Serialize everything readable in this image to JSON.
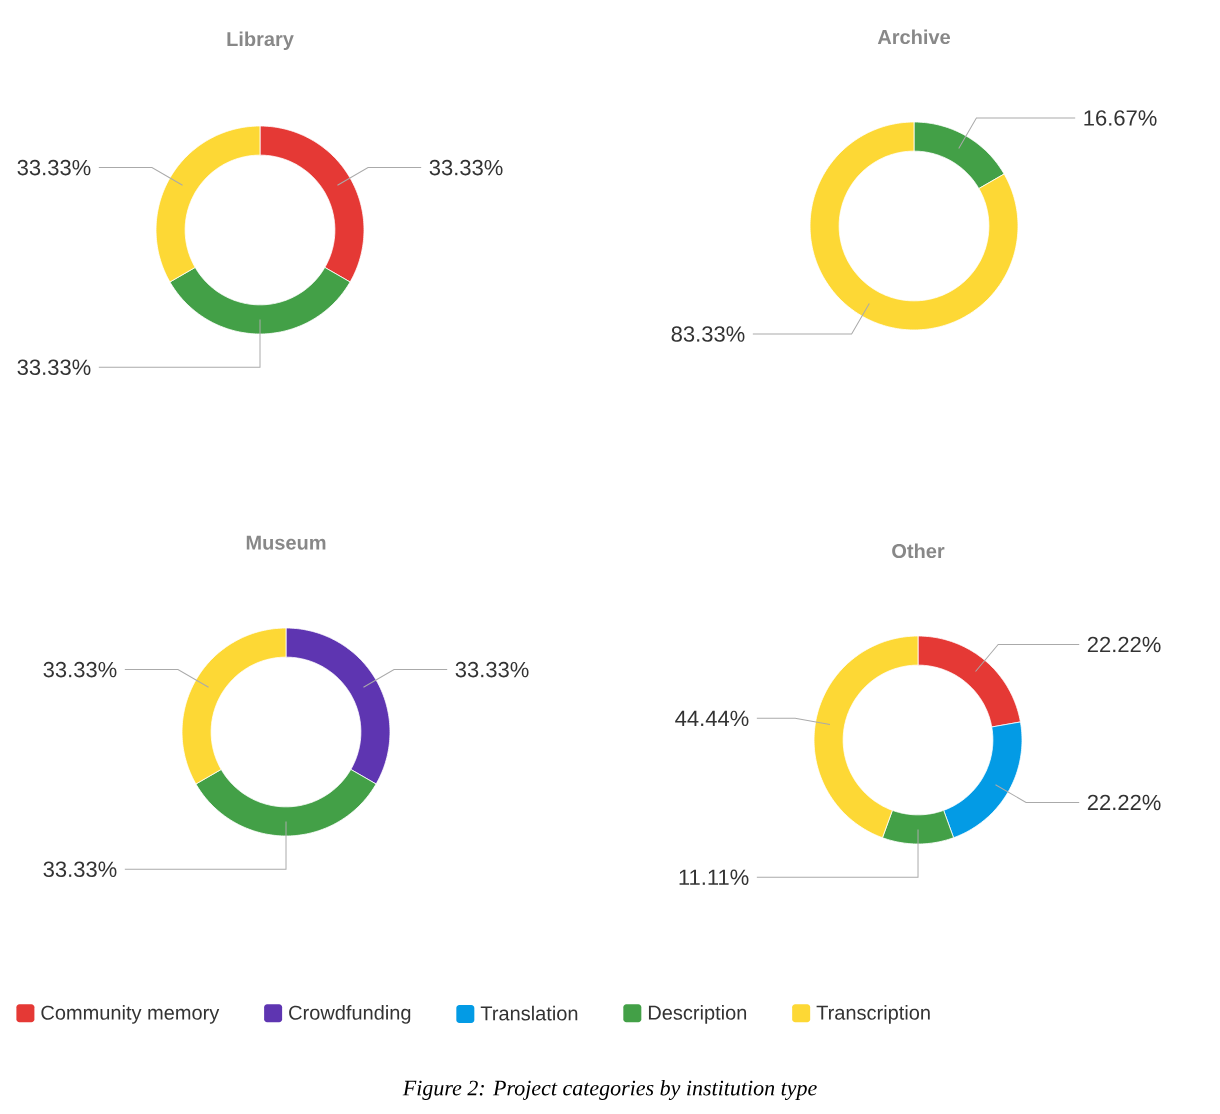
{
  "chart_data": [
    {
      "type": "donut",
      "title": "Library",
      "categories": [
        null,
        null,
        null,
        null,
        null
      ],
      "values": [
        33.33,
        0,
        0,
        33.33,
        33.33
      ],
      "colors": [
        "#e53935",
        "#5e35b1",
        "#039be5",
        "#43a047",
        "#fdd835"
      ],
      "value_labels": [
        "33.33%",
        null,
        null,
        "33.33%",
        "33.33%"
      ]
    },
    {
      "type": "donut",
      "title": "Archive",
      "categories": [
        null,
        null,
        null,
        null,
        null
      ],
      "values": [
        0,
        0,
        0,
        16.67,
        83.33
      ],
      "colors": [
        "#e53935",
        "#5e35b1",
        "#039be5",
        "#43a047",
        "#fdd835"
      ],
      "value_labels": [
        null,
        null,
        null,
        "16.67%",
        "83.33%"
      ]
    },
    {
      "type": "donut",
      "title": "Museum",
      "categories": [
        null,
        null,
        null,
        null,
        null
      ],
      "values": [
        0,
        33.33,
        0,
        33.33,
        33.33
      ],
      "colors": [
        "#e53935",
        "#5e35b1",
        "#039be5",
        "#43a047",
        "#fdd835"
      ],
      "value_labels": [
        null,
        "33.33%",
        null,
        "33.33%",
        "33.33%"
      ]
    },
    {
      "type": "donut",
      "title": "Other",
      "categories": [
        "Community memory",
        "Crowdfunding",
        "Translation",
        "Description",
        "Transcription"
      ],
      "values": [
        22.22,
        0,
        22.22,
        11.11,
        44.44
      ],
      "colors": [
        "#e53935",
        "#5e35b1",
        "#039be5",
        "#43a047",
        "#fdd835"
      ],
      "value_labels": [
        "22.22%",
        null,
        "22.22%",
        "11.11%",
        "44.44%"
      ],
      "legend": "bottom",
      "annotations": [
        "Figure 2: Project categories by institution type"
      ]
    }
  ]
}
